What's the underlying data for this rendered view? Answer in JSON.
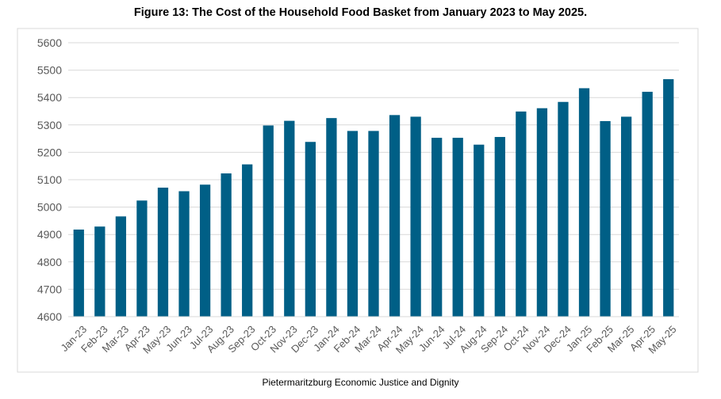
{
  "title": "Figure 13: The Cost of the Household Food Basket from January 2023 to May 2025.",
  "source": "Pietermaritzburg Economic Justice and Dignity",
  "colors": {
    "bar": "#005f86",
    "grid": "#d9d9d9",
    "axis_text": "#595959"
  },
  "chart_data": {
    "type": "bar",
    "title": "Figure 13: The Cost of the Household Food Basket from January 2023 to May 2025.",
    "xlabel": "",
    "ylabel": "",
    "ylim": [
      4600,
      5600
    ],
    "yticks": [
      4600,
      4700,
      4800,
      4900,
      5000,
      5100,
      5200,
      5300,
      5400,
      5500,
      5600
    ],
    "grid": true,
    "legend": "none",
    "categories": [
      "Jan-23",
      "Feb-23",
      "Mar-23",
      "Apr-23",
      "May-23",
      "Jun-23",
      "Jul-23",
      "Aug-23",
      "Sep-23",
      "Oct-23",
      "Nov-23",
      "Dec-23",
      "Jan-24",
      "Feb-24",
      "Mar-24",
      "Apr-24",
      "May-24",
      "Jun-24",
      "Jul-24",
      "Aug-24",
      "Sep-24",
      "Oct-24",
      "Nov-24",
      "Dec-24",
      "Jan-25",
      "Feb-25",
      "Mar-25",
      "Apr-25",
      "May-25"
    ],
    "values": [
      4918,
      4929,
      4966,
      5024,
      5071,
      5058,
      5082,
      5123,
      5156,
      5298,
      5315,
      5238,
      5325,
      5278,
      5278,
      5336,
      5330,
      5253,
      5253,
      5228,
      5256,
      5349,
      5361,
      5384,
      5434,
      5314,
      5330,
      5421,
      5467
    ]
  }
}
